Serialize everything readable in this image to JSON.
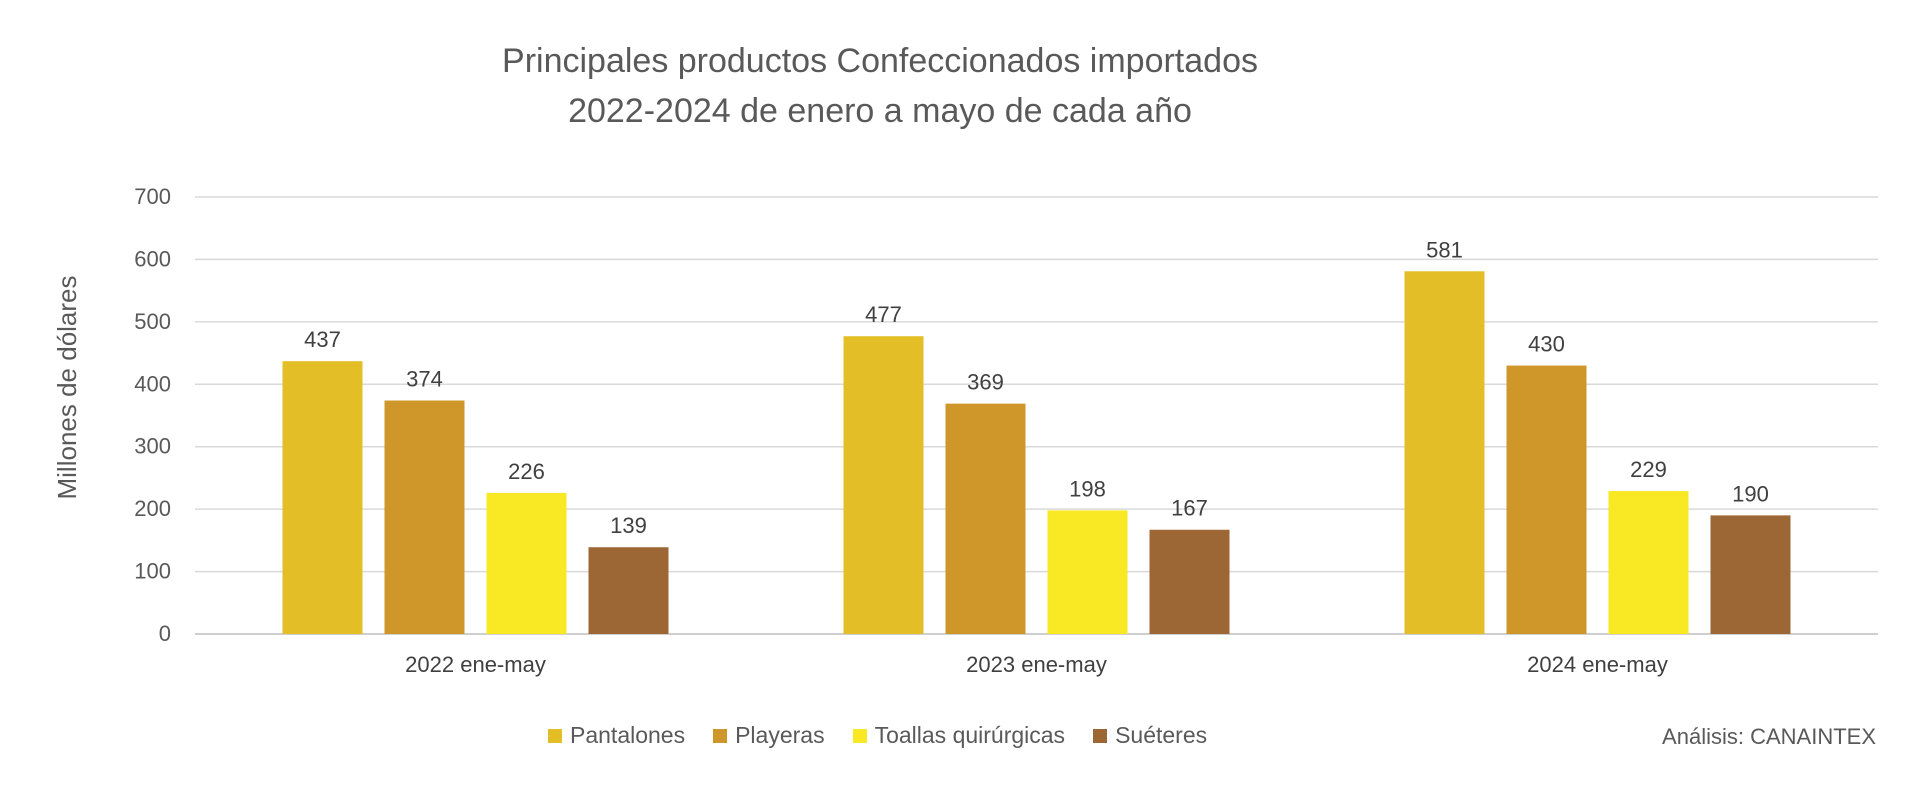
{
  "chart_data": {
    "type": "bar",
    "title_line1": "Principales productos Confeccionados importados",
    "title_line2": "2022-2024 de enero a mayo de cada año",
    "ylabel": "Millones de dólares",
    "xlabel": "",
    "ylim": [
      0,
      700
    ],
    "yticks": [
      0,
      100,
      200,
      300,
      400,
      500,
      600,
      700
    ],
    "categories": [
      "2022 ene-may",
      "2023 ene-may",
      "2024 ene-may"
    ],
    "series": [
      {
        "name": "Pantalones",
        "color": "#E3BE27",
        "values": [
          437,
          477,
          581
        ]
      },
      {
        "name": "Playeras",
        "color": "#CF962A",
        "values": [
          374,
          369,
          430
        ]
      },
      {
        "name": "Toallas quirúrgicas",
        "color": "#F9E824",
        "values": [
          226,
          198,
          229
        ]
      },
      {
        "name": "Suéteres",
        "color": "#9C6734",
        "values": [
          139,
          167,
          190
        ]
      }
    ],
    "grid": true,
    "legend_position": "bottom",
    "source": "Análisis: CANAINTEX"
  }
}
